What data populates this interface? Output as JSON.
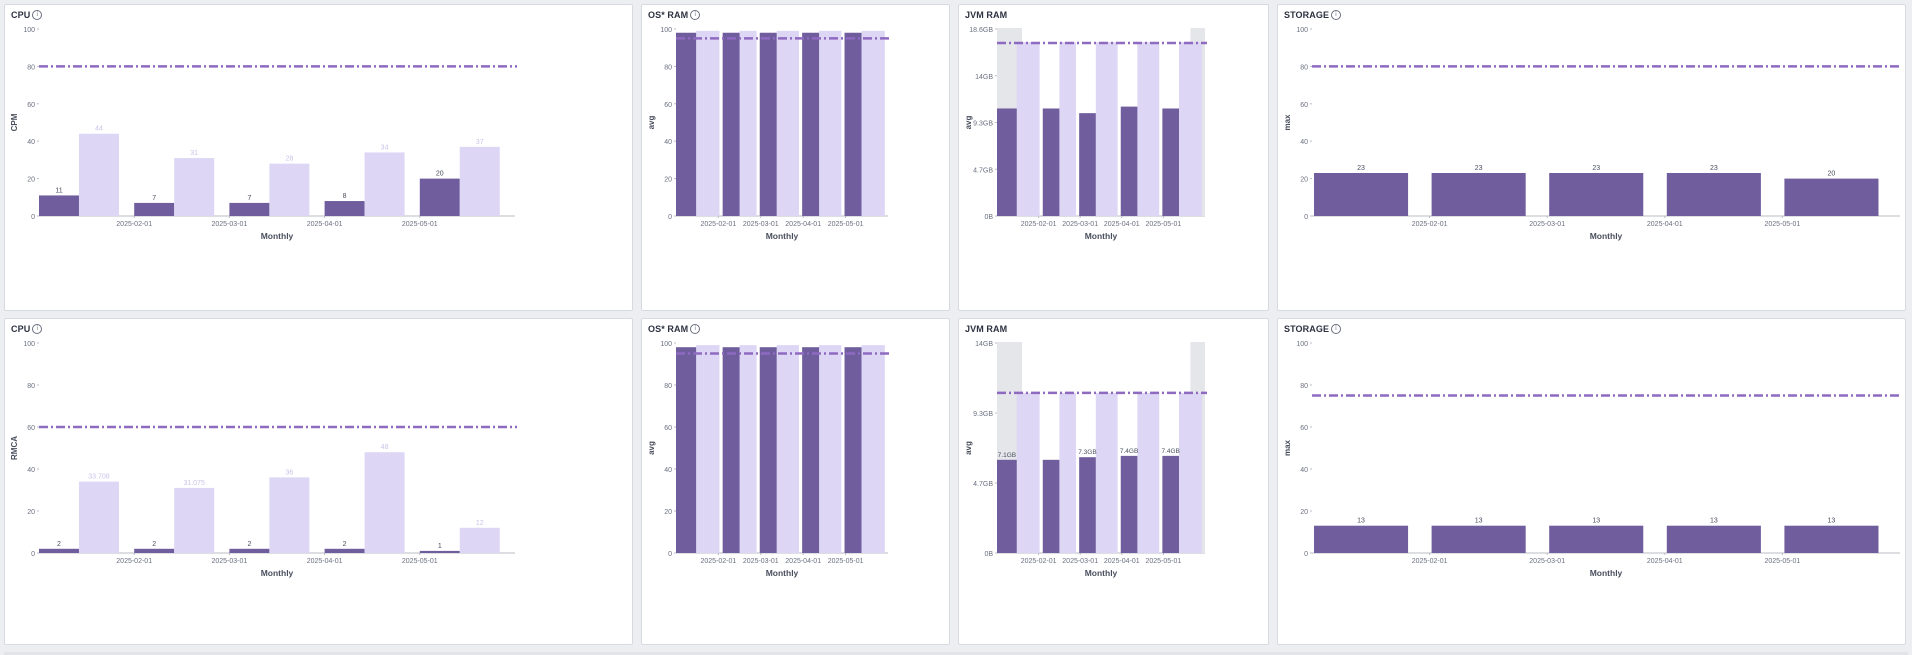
{
  "colors": {
    "dark": "#705d9e",
    "light": "#ddd7f5",
    "gray": "#e4e6ea",
    "threshold": "#8e6ac0"
  },
  "panels": [
    {
      "title": "CPU",
      "info": true,
      "chart_data": {
        "type": "bar",
        "xlabel": "Monthly",
        "ylabel": "CPM",
        "ylim": [
          0,
          100
        ],
        "yticks": [
          "0",
          "20",
          "40",
          "60",
          "80",
          "100"
        ],
        "xticks": [
          "2025-02-01",
          "2025-03-01",
          "2025-04-01",
          "2025-05-01"
        ],
        "threshold": 80,
        "series": [
          {
            "values": [
              11,
              7,
              7,
              8,
              20
            ],
            "labels": [
              "11",
              "7",
              "7",
              "8",
              "20"
            ]
          },
          {
            "values": [
              44,
              31,
              28,
              34,
              37
            ],
            "labels": [
              "44",
              "31",
              "28",
              "34",
              "37"
            ]
          }
        ]
      }
    },
    {
      "title": "OS* RAM",
      "info": true,
      "chart_data": {
        "type": "bar",
        "xlabel": "Monthly",
        "ylabel": "avg",
        "ylim": [
          0,
          100
        ],
        "yticks": [
          "0",
          "20",
          "40",
          "60",
          "80",
          "100"
        ],
        "xticks": [
          "2025-02-01",
          "2025-03-01",
          "2025-04-01",
          "2025-05-01"
        ],
        "threshold": 95,
        "series": [
          {
            "values": [
              98,
              98,
              98,
              98,
              98
            ]
          },
          {
            "values": [
              99,
              99,
              99,
              99,
              99
            ]
          }
        ]
      }
    },
    {
      "title": "JVM RAM",
      "info": false,
      "chart_data": {
        "type": "bar",
        "xlabel": "Monthly",
        "ylabel": "avg",
        "ylim": [
          0,
          20
        ],
        "yticks": [
          "0B",
          "4.7GB",
          "9.3GB",
          "14GB",
          "18.6GB"
        ],
        "xticks": [
          "2025-02-01",
          "2025-03-01",
          "2025-04-01",
          "2025-05-01"
        ],
        "threshold": 18.5,
        "series": [
          {
            "values": [
              11.5,
              11.5,
              11.0,
              11.7,
              11.5
            ]
          },
          {
            "values": [
              18.6,
              18.6,
              18.6,
              18.6,
              18.6
            ]
          }
        ]
      }
    },
    {
      "title": "STORAGE",
      "info": true,
      "chart_data": {
        "type": "bar",
        "xlabel": "Monthly",
        "ylabel": "max",
        "ylim": [
          0,
          100
        ],
        "yticks": [
          "0",
          "20",
          "40",
          "60",
          "80",
          "100"
        ],
        "xticks": [
          "2025-02-01",
          "2025-03-01",
          "2025-04-01",
          "2025-05-01"
        ],
        "threshold": 80,
        "series": [
          {
            "values": [
              23,
              23,
              23,
              23,
              20
            ],
            "labels": [
              "23",
              "23",
              "23",
              "23",
              "20"
            ]
          }
        ]
      }
    },
    {
      "title": "CPU",
      "info": true,
      "chart_data": {
        "type": "bar",
        "xlabel": "Monthly",
        "ylabel": "RMCA",
        "ylim": [
          0,
          100
        ],
        "yticks": [
          "0",
          "20",
          "40",
          "60",
          "80",
          "100"
        ],
        "xticks": [
          "2025-02-01",
          "2025-03-01",
          "2025-04-01",
          "2025-05-01"
        ],
        "threshold": 60,
        "series": [
          {
            "values": [
              2,
              2,
              2,
              2,
              1
            ],
            "labels": [
              "2",
              "2",
              "2",
              "2",
              "1"
            ]
          },
          {
            "values": [
              34,
              31,
              36,
              48,
              12
            ],
            "labels": [
              "33.708",
              "31.075",
              "36",
              "48",
              "12"
            ]
          }
        ]
      }
    },
    {
      "title": "OS* RAM",
      "info": true,
      "chart_data": {
        "type": "bar",
        "xlabel": "Monthly",
        "ylabel": "avg",
        "ylim": [
          0,
          100
        ],
        "yticks": [
          "0",
          "20",
          "40",
          "60",
          "80",
          "100"
        ],
        "xticks": [
          "2025-02-01",
          "2025-03-01",
          "2025-04-01",
          "2025-05-01"
        ],
        "threshold": 95,
        "series": [
          {
            "values": [
              98,
              98,
              98,
              98,
              98
            ]
          },
          {
            "values": [
              99,
              99,
              99,
              99,
              99
            ]
          }
        ]
      }
    },
    {
      "title": "JVM RAM",
      "info": false,
      "chart_data": {
        "type": "bar",
        "xlabel": "Monthly",
        "ylabel": "avg",
        "ylim": [
          0,
          16
        ],
        "yticks": [
          "0B",
          "4.7GB",
          "9.3GB",
          "14GB"
        ],
        "xticks": [
          "2025-02-01",
          "2025-03-01",
          "2025-04-01",
          "2025-05-01"
        ],
        "threshold": 12.2,
        "series": [
          {
            "values": [
              7.1,
              7.1,
              7.3,
              7.4,
              7.4
            ],
            "labels": [
              "7.1GB",
              "",
              "7.3GB",
              "7.4GB",
              "7.4GB"
            ]
          },
          {
            "values": [
              12.2,
              12.2,
              12.2,
              12.2,
              12.2
            ]
          }
        ]
      }
    },
    {
      "title": "STORAGE",
      "info": true,
      "chart_data": {
        "type": "bar",
        "xlabel": "Monthly",
        "ylabel": "max",
        "ylim": [
          0,
          100
        ],
        "yticks": [
          "0",
          "20",
          "40",
          "60",
          "80",
          "100"
        ],
        "xticks": [
          "2025-02-01",
          "2025-03-01",
          "2025-04-01",
          "2025-05-01"
        ],
        "threshold": 75,
        "series": [
          {
            "values": [
              13,
              13,
              13,
              13,
              13
            ],
            "labels": [
              "13",
              "13",
              "13",
              "13",
              "13"
            ]
          }
        ]
      }
    }
  ]
}
